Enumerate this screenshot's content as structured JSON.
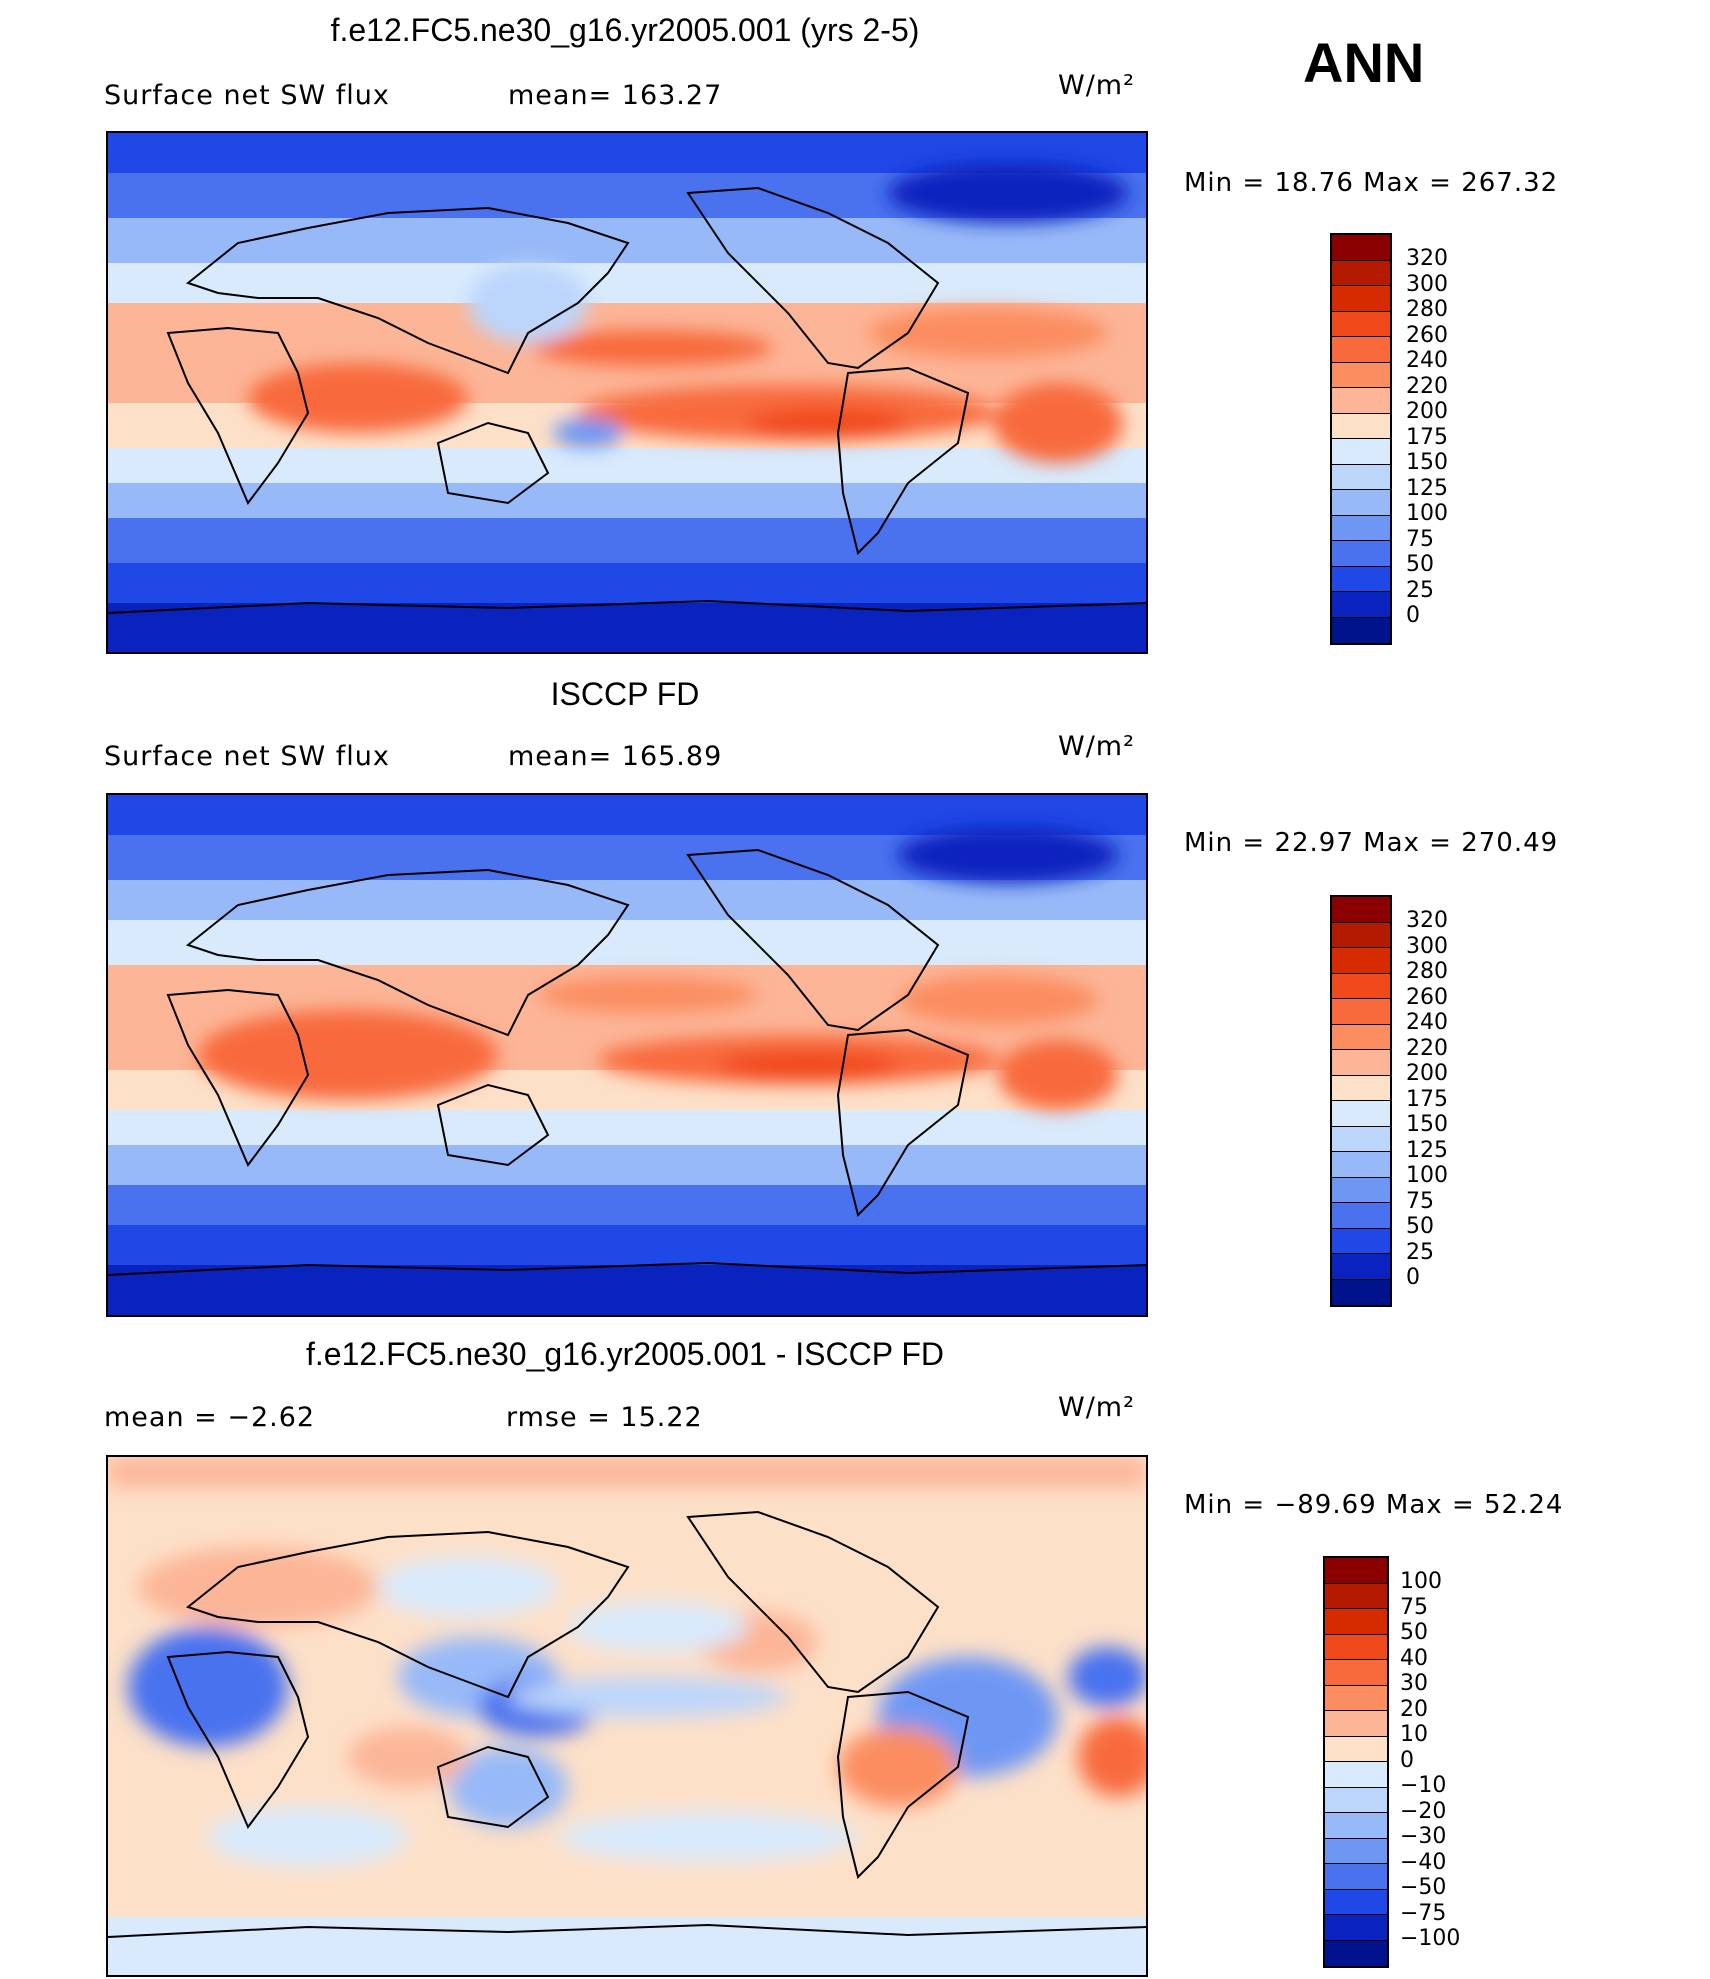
{
  "season": "ANN",
  "units": "W/m²",
  "panels": [
    {
      "id": "model",
      "title": "f.e12.FC5.ne30_g16.yr2005.001 (yrs 2-5)",
      "field": "Surface net SW flux",
      "stat1": "mean=  163.27",
      "stat2": "",
      "units": "W/m²",
      "minmax": "Min  =    18.76  Max  =  267.32",
      "levels": [
        "320",
        "300",
        "280",
        "260",
        "240",
        "220",
        "200",
        "175",
        "150",
        "125",
        "100",
        "75",
        "50",
        "25",
        "0"
      ],
      "colors": [
        "#8b0000",
        "#b31a00",
        "#d62a00",
        "#f04a1c",
        "#f86a3c",
        "#fb8d60",
        "#fcb597",
        "#fde0c8",
        "#d8eafc",
        "#bcd6fb",
        "#97b9f8",
        "#6e97f4",
        "#4a72ef",
        "#2048e6",
        "#0a22be",
        "#00128c"
      ]
    },
    {
      "id": "obs",
      "title": "ISCCP FD",
      "field": "Surface net SW flux",
      "stat1": "mean=  165.89",
      "stat2": "",
      "units": "W/m²",
      "minmax": "Min  =    22.97  Max  =  270.49",
      "levels": [
        "320",
        "300",
        "280",
        "260",
        "240",
        "220",
        "200",
        "175",
        "150",
        "125",
        "100",
        "75",
        "50",
        "25",
        "0"
      ],
      "colors": [
        "#8b0000",
        "#b31a00",
        "#d62a00",
        "#f04a1c",
        "#f86a3c",
        "#fb8d60",
        "#fcb597",
        "#fde0c8",
        "#d8eafc",
        "#bcd6fb",
        "#97b9f8",
        "#6e97f4",
        "#4a72ef",
        "#2048e6",
        "#0a22be",
        "#00128c"
      ]
    },
    {
      "id": "diff",
      "title": "f.e12.FC5.ne30_g16.yr2005.001 - ISCCP FD",
      "field": "mean  =    −2.62",
      "stat1": "rmse  =    15.22",
      "stat2": "",
      "units": "W/m²",
      "minmax": "Min  = −89.69  Max  =    52.24",
      "levels": [
        "100",
        "75",
        "50",
        "40",
        "30",
        "20",
        "10",
        "0",
        "−10",
        "−20",
        "−30",
        "−40",
        "−50",
        "−75",
        "−100"
      ],
      "colors": [
        "#8b0000",
        "#b31a00",
        "#d62a00",
        "#f04a1c",
        "#f86a3c",
        "#fb8d60",
        "#fcb597",
        "#fde0c8",
        "#d8eafc",
        "#bcd6fb",
        "#97b9f8",
        "#6e97f4",
        "#4a72ef",
        "#2048e6",
        "#0a22be",
        "#00128c"
      ]
    }
  ]
}
